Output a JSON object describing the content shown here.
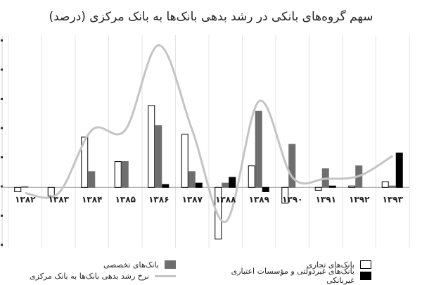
{
  "chart_data": {
    "type": "bar",
    "title": "سهم گروه‌های بانکی در رشد بدهی بانک‌ها به بانک مرکزی (درصد)",
    "categories": [
      "۱۳۸۲",
      "۱۳۸۳",
      "۱۳۸۴",
      "۱۳۸۵",
      "۱۳۸۶",
      "۱۳۸۷",
      "۱۳۸۸",
      "۱۳۸۹",
      "۱۳۹۰",
      "۱۳۹۱",
      "۱۳۹۲",
      "۱۳۹۳"
    ],
    "series": [
      {
        "name": "بانک‌های تجاری",
        "type": "bar",
        "color": "#ffffff",
        "values": [
          -1.5,
          -3,
          17.5,
          9,
          28.5,
          18.5,
          -18,
          7.5,
          -5.5,
          -1,
          0.5,
          2
        ]
      },
      {
        "name": "بانک‌های تخصصی",
        "type": "bar",
        "color": "#6e6e6e",
        "values": [
          0.3,
          0,
          5.5,
          9,
          21.5,
          5.5,
          1.5,
          26.5,
          15,
          6.5,
          7.5,
          0.5
        ]
      },
      {
        "name": "بانک‌های غیردولتی و مؤسسات اعتباری غیربانکی",
        "type": "bar",
        "color": "#000000",
        "values": [
          0,
          0,
          0,
          0,
          1,
          1.5,
          3.5,
          -1.5,
          0,
          0.5,
          0,
          12
        ]
      },
      {
        "name": "نرخ رشد بدهی بانک‌ها به بانک مرکزی",
        "type": "line",
        "color": "#c4c4c4",
        "values": [
          -2,
          -2,
          20,
          20,
          49.5,
          20,
          -12,
          30,
          3.5,
          3,
          4,
          11
        ]
      }
    ],
    "ylim": [
      -21,
      53
    ],
    "grid": "vertical",
    "legend": "bottom"
  }
}
